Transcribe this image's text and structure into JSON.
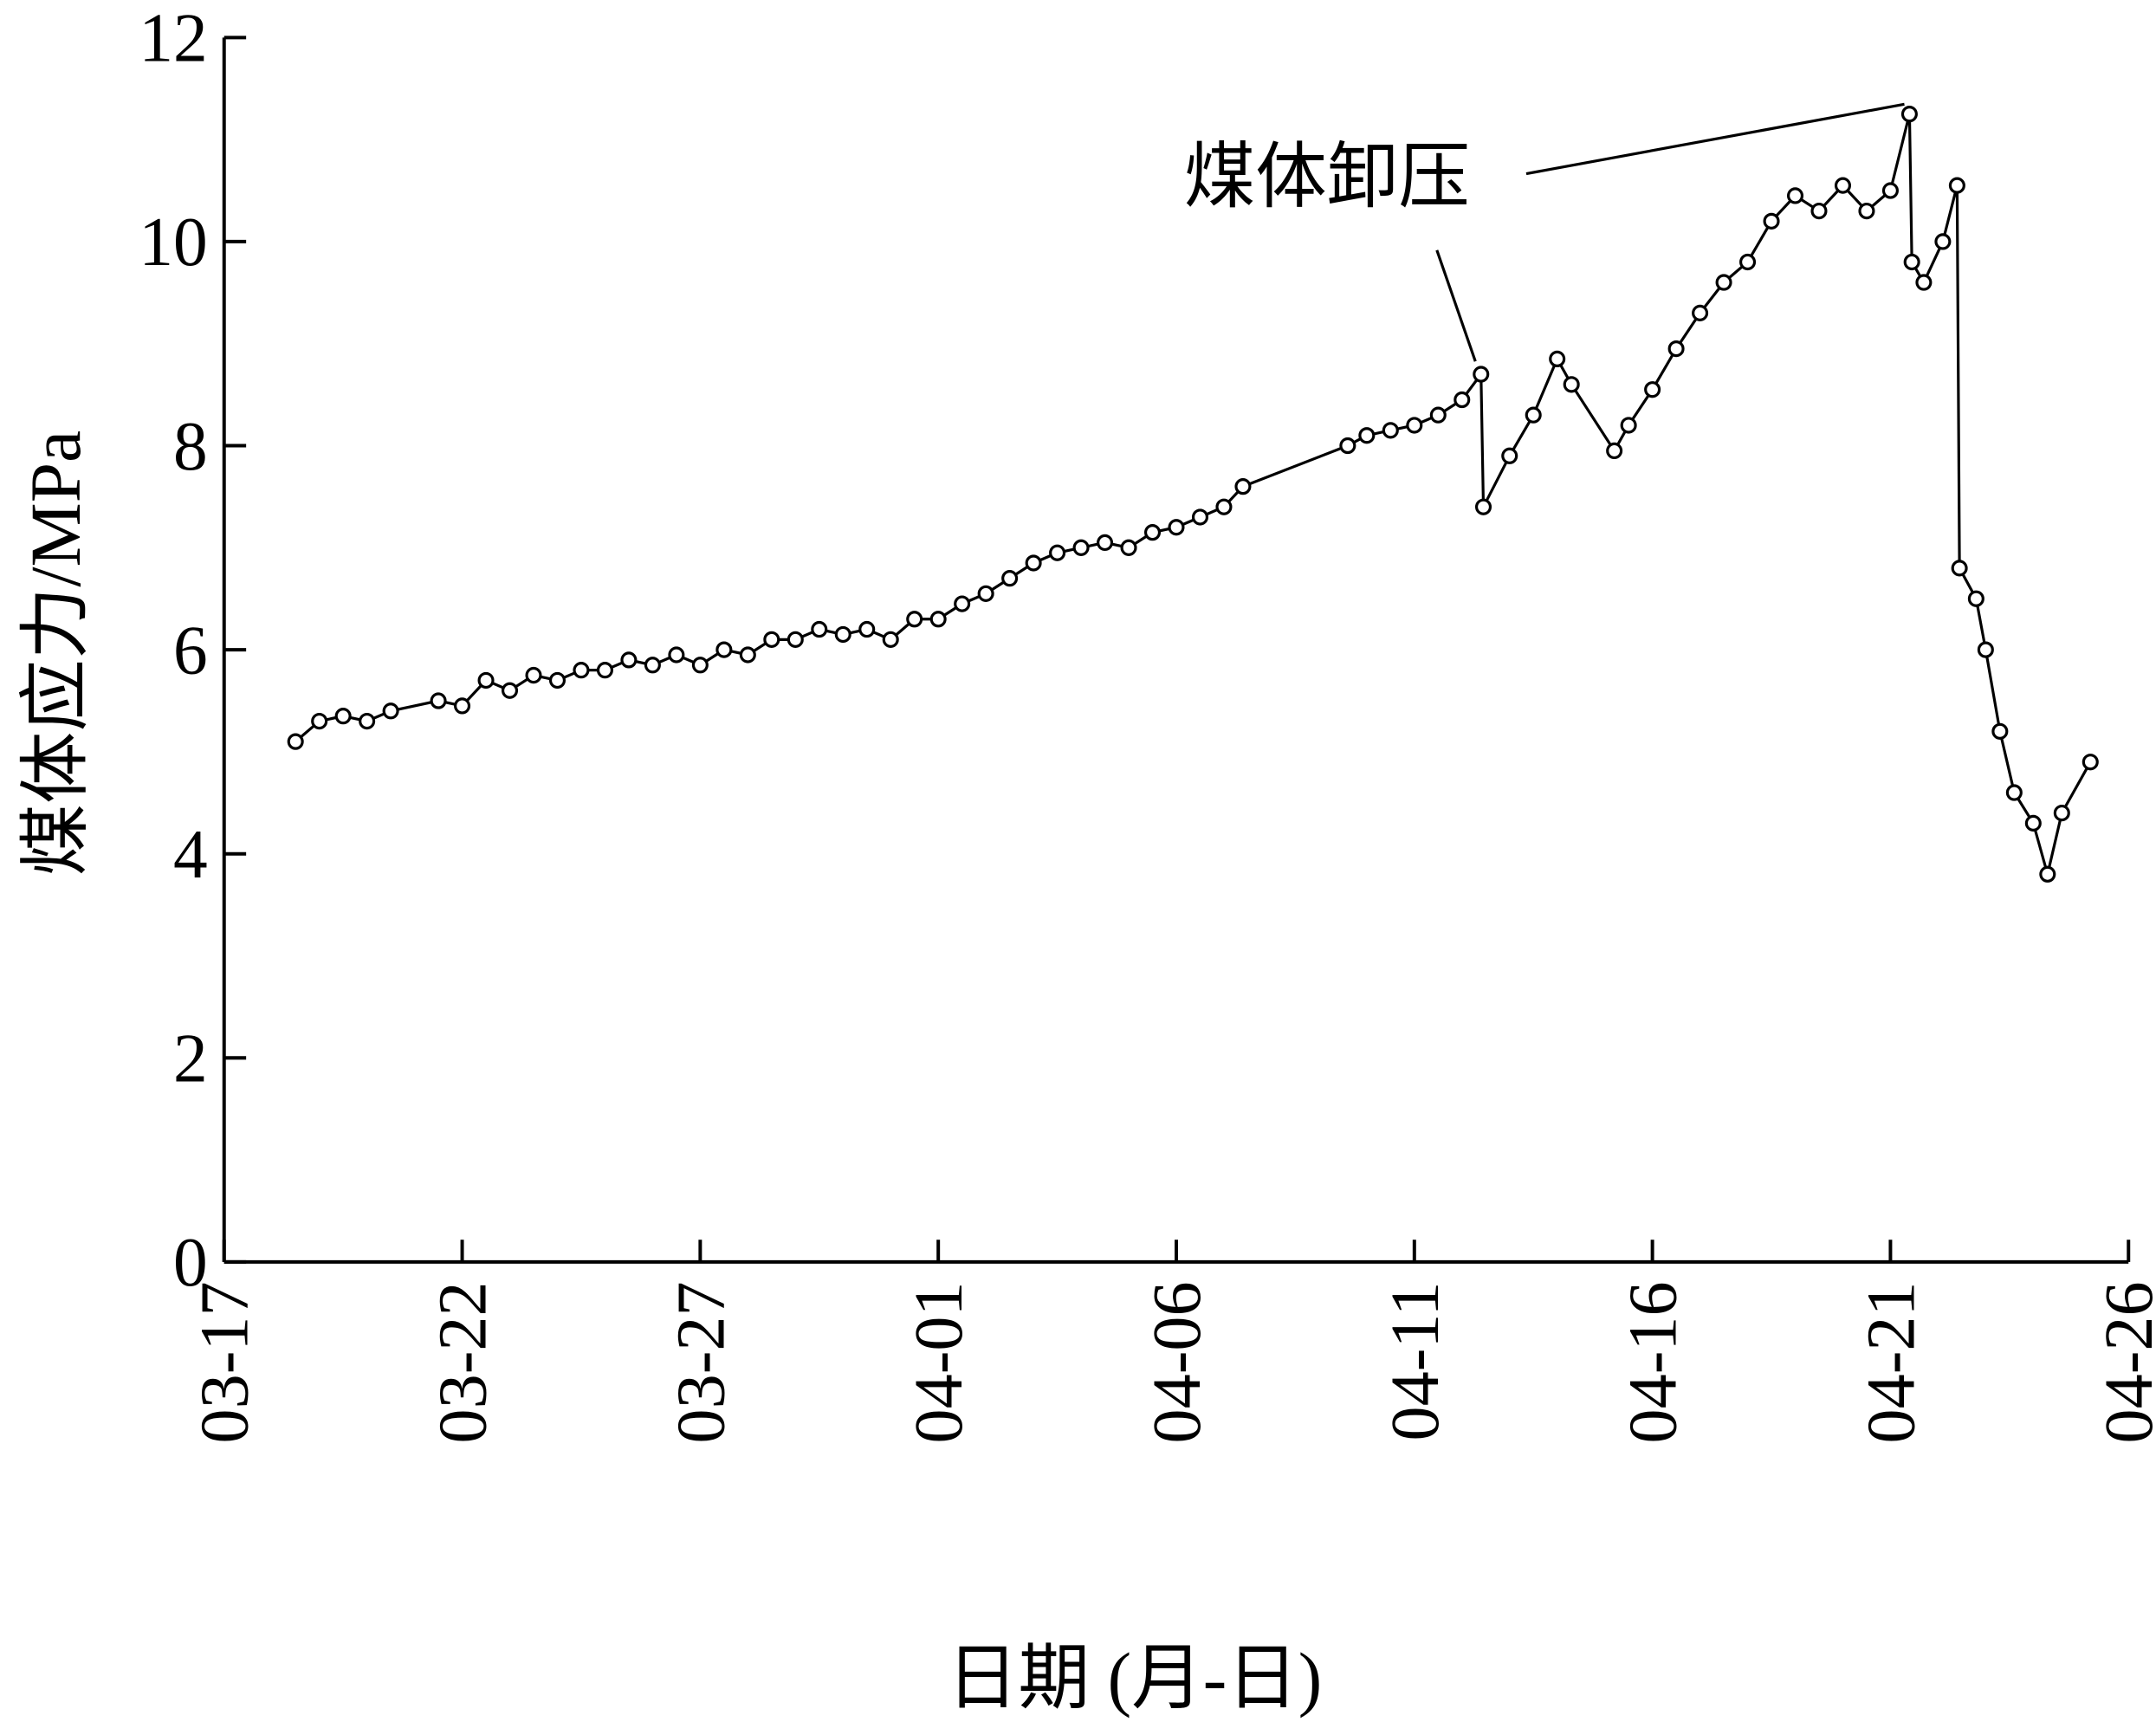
{
  "chart_data": {
    "type": "line",
    "x_label": "日期 (月-日)",
    "y_label": "煤体应力/MPa",
    "annotation": "煤体卸压",
    "xlim": [
      0,
      40
    ],
    "xticks": [
      {
        "value": 0,
        "label": "03-17"
      },
      {
        "value": 5,
        "label": "03-22"
      },
      {
        "value": 10,
        "label": "03-27"
      },
      {
        "value": 15,
        "label": "04-01"
      },
      {
        "value": 20,
        "label": "04-06"
      },
      {
        "value": 25,
        "label": "04-11"
      },
      {
        "value": 30,
        "label": "04-16"
      },
      {
        "value": 35,
        "label": "04-21"
      },
      {
        "value": 40,
        "label": "04-26"
      }
    ],
    "ylim": [
      0,
      12
    ],
    "yticks": [
      0,
      2,
      4,
      6,
      8,
      10,
      12
    ],
    "series": [
      {
        "color": "#000000",
        "x": [
          1.5,
          2,
          2.5,
          3,
          3.5,
          4.5,
          5,
          5.5,
          6,
          6.5,
          7,
          7.5,
          8,
          8.5,
          9,
          9.5,
          10,
          10.5,
          11,
          11.5,
          12,
          12.5,
          13,
          13.5,
          14,
          14.5,
          15,
          15.5,
          16,
          16.5,
          17,
          17.5,
          18,
          18.5,
          19,
          19.5,
          20,
          20.5,
          21,
          21.4,
          23.6,
          24,
          24.5,
          25,
          25.5,
          26,
          26.4,
          26.45,
          27,
          27.5,
          28,
          28.3,
          29.2,
          29.5,
          30,
          30.5,
          31,
          31.5,
          32,
          32.5,
          33,
          33.5,
          34,
          34.5,
          35,
          35.4,
          35.45,
          35.7,
          36.1,
          36.4,
          36.45,
          36.8,
          37,
          37.3,
          37.6,
          38,
          38.3,
          38.6,
          39.2
        ],
        "values": [
          5.1,
          5.3,
          5.35,
          5.3,
          5.4,
          5.5,
          5.45,
          5.7,
          5.6,
          5.75,
          5.7,
          5.8,
          5.8,
          5.9,
          5.85,
          5.95,
          5.85,
          6.0,
          5.95,
          6.1,
          6.1,
          6.2,
          6.15,
          6.2,
          6.1,
          6.3,
          6.3,
          6.45,
          6.55,
          6.7,
          6.85,
          6.95,
          7.0,
          7.05,
          7.0,
          7.15,
          7.2,
          7.3,
          7.4,
          7.6,
          8.0,
          8.1,
          8.15,
          8.2,
          8.3,
          8.45,
          8.7,
          7.4,
          7.9,
          8.3,
          8.85,
          8.6,
          7.95,
          8.2,
          8.55,
          8.95,
          9.3,
          9.6,
          9.8,
          10.2,
          10.45,
          10.3,
          10.55,
          10.3,
          10.5,
          11.25,
          9.8,
          9.6,
          10.0,
          10.55,
          6.8,
          6.5,
          6.0,
          5.2,
          4.6,
          4.3,
          3.8,
          4.4,
          4.9
        ]
      }
    ]
  }
}
